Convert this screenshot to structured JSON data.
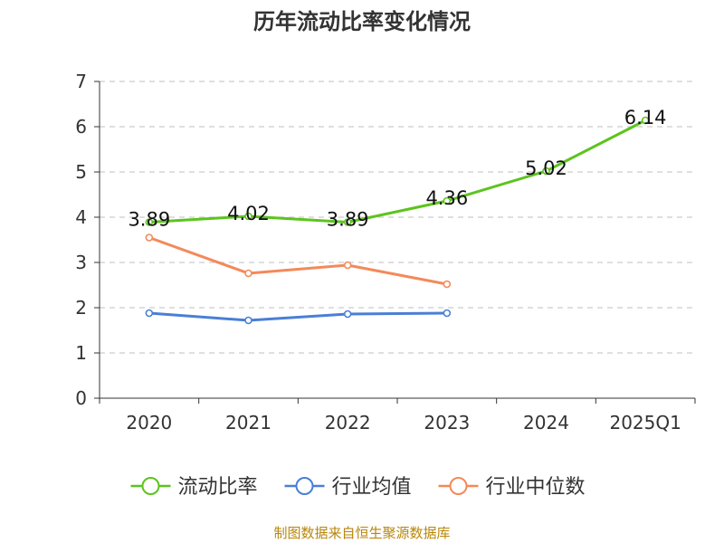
{
  "title": "历年流动比率变化情况",
  "source": "制图数据来自恒生聚源数据库",
  "chart_data": {
    "type": "line",
    "categories": [
      "2020",
      "2021",
      "2022",
      "2023",
      "2024",
      "2025Q1"
    ],
    "ylim": [
      0,
      7
    ],
    "yticks": [
      "0",
      "1",
      "2",
      "3",
      "4",
      "5",
      "6",
      "7"
    ],
    "grid": true,
    "legend_position": "bottom",
    "series": [
      {
        "name": "流动比率",
        "color": "#5cc41e",
        "values": [
          3.89,
          4.02,
          3.89,
          4.36,
          5.02,
          6.14
        ],
        "labels": [
          "3.89",
          "4.02",
          "3.89",
          "4.36",
          "5.02",
          "6.14"
        ]
      },
      {
        "name": "行业均值",
        "color": "#4a7fd6",
        "values": [
          1.88,
          1.72,
          1.86,
          1.88,
          null,
          null
        ]
      },
      {
        "name": "行业中位数",
        "color": "#f4895a",
        "values": [
          3.55,
          2.76,
          2.94,
          2.52,
          null,
          null
        ]
      }
    ]
  }
}
